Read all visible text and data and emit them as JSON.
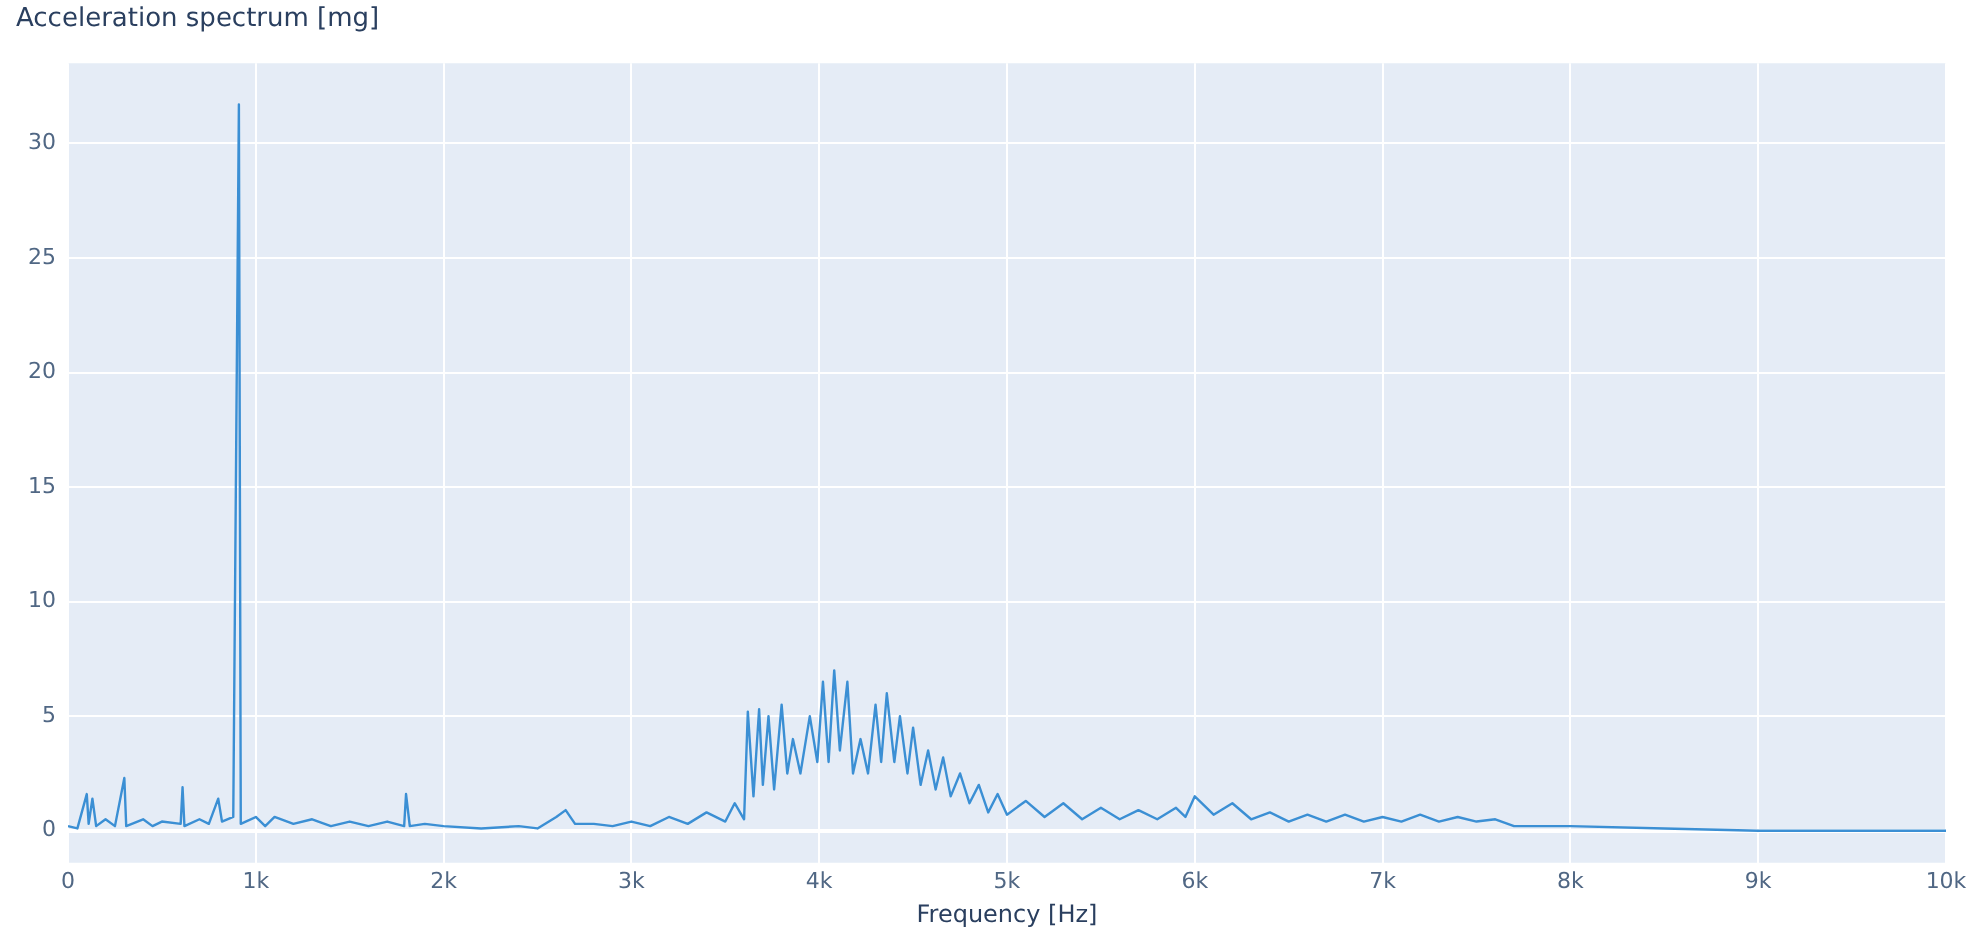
{
  "chart_data": {
    "type": "line",
    "title": "Acceleration spectrum [mg]",
    "xlabel": "Frequency [Hz]",
    "x": [
      0,
      50,
      100,
      110,
      130,
      150,
      200,
      250,
      300,
      310,
      400,
      450,
      500,
      600,
      610,
      620,
      700,
      750,
      800,
      820,
      880,
      910,
      920,
      1000,
      1050,
      1100,
      1200,
      1300,
      1400,
      1500,
      1600,
      1700,
      1790,
      1800,
      1820,
      1900,
      2000,
      2200,
      2400,
      2500,
      2600,
      2650,
      2700,
      2800,
      2900,
      3000,
      3100,
      3200,
      3300,
      3400,
      3500,
      3550,
      3600,
      3620,
      3650,
      3680,
      3700,
      3730,
      3760,
      3800,
      3830,
      3860,
      3900,
      3950,
      3990,
      4020,
      4050,
      4080,
      4110,
      4150,
      4180,
      4220,
      4260,
      4300,
      4330,
      4360,
      4400,
      4430,
      4470,
      4500,
      4540,
      4580,
      4620,
      4660,
      4700,
      4750,
      4800,
      4850,
      4900,
      4950,
      5000,
      5100,
      5200,
      5300,
      5400,
      5500,
      5600,
      5700,
      5800,
      5900,
      5950,
      6000,
      6100,
      6200,
      6300,
      6400,
      6500,
      6600,
      6700,
      6800,
      6900,
      7000,
      7100,
      7200,
      7300,
      7400,
      7500,
      7600,
      7700,
      7800,
      8000,
      8500,
      9000,
      10000
    ],
    "series": [
      {
        "color": "#3b8fd4",
        "values": [
          0.2,
          0.1,
          1.6,
          0.3,
          1.4,
          0.2,
          0.5,
          0.2,
          2.3,
          0.2,
          0.5,
          0.2,
          0.4,
          0.3,
          1.9,
          0.2,
          0.5,
          0.3,
          1.4,
          0.4,
          0.6,
          31.7,
          0.3,
          0.6,
          0.2,
          0.6,
          0.3,
          0.5,
          0.2,
          0.4,
          0.2,
          0.4,
          0.2,
          1.6,
          0.2,
          0.3,
          0.2,
          0.1,
          0.2,
          0.1,
          0.6,
          0.9,
          0.3,
          0.3,
          0.2,
          0.4,
          0.2,
          0.6,
          0.3,
          0.8,
          0.4,
          1.2,
          0.5,
          5.2,
          1.5,
          5.3,
          2,
          5,
          1.8,
          5.5,
          2.5,
          4,
          2.5,
          5,
          3,
          6.5,
          3,
          7,
          3.5,
          6.5,
          2.5,
          4,
          2.5,
          5.5,
          3,
          6,
          3,
          5,
          2.5,
          4.5,
          2,
          3.5,
          1.8,
          3.2,
          1.5,
          2.5,
          1.2,
          2,
          0.8,
          1.6,
          0.7,
          1.3,
          0.6,
          1.2,
          0.5,
          1,
          0.5,
          0.9,
          0.5,
          1,
          0.6,
          1.5,
          0.7,
          1.2,
          0.5,
          0.8,
          0.4,
          0.7,
          0.4,
          0.7,
          0.4,
          0.6,
          0.4,
          0.7,
          0.4,
          0.6,
          0.4,
          0.5,
          0.2,
          0.2,
          0.2,
          0.1,
          0,
          0
        ]
      }
    ],
    "xlim": [
      0,
      10000
    ],
    "xticks": [
      0,
      {
        "value": 1000,
        "label": "1k"
      },
      {
        "value": 2000,
        "label": "2k"
      },
      {
        "value": 3000,
        "label": "3k"
      },
      {
        "value": 4000,
        "label": "4k"
      },
      {
        "value": 5000,
        "label": "5k"
      },
      {
        "value": 6000,
        "label": "6k"
      },
      {
        "value": 7000,
        "label": "7k"
      },
      {
        "value": 8000,
        "label": "8k"
      },
      {
        "value": 9000,
        "label": "9k"
      },
      {
        "value": 10000,
        "label": "10k"
      }
    ],
    "ylim": [
      -1.4,
      33.5
    ],
    "yticks": [
      0,
      5,
      10,
      15,
      20,
      25,
      30
    ],
    "grid": true,
    "marker": "none",
    "line_style": "solid"
  }
}
